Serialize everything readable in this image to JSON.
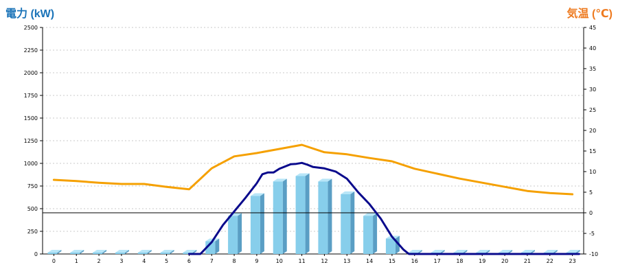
{
  "left_axis_title": "電力 (kW)",
  "right_axis_title": "気温 (℃)",
  "colors": {
    "bar_face": "#87ceeb",
    "bar_side": "#5a9ec4",
    "bar_top": "#b8e6f8",
    "power_line": "#0a0a8c",
    "temp_line": "#f5a000",
    "grid": "#c8c8c8",
    "zero_line": "#000000"
  },
  "chart_data": {
    "type": "bar",
    "categories": [
      "0",
      "1",
      "2",
      "3",
      "4",
      "5",
      "6",
      "7",
      "8",
      "9",
      "10",
      "11",
      "12",
      "13",
      "14",
      "15",
      "16",
      "17",
      "18",
      "19",
      "20",
      "21",
      "22",
      "23"
    ],
    "left_axis": {
      "ylim": [
        0,
        2500
      ],
      "ticks": [
        0,
        250,
        500,
        750,
        1000,
        1250,
        1500,
        1750,
        2000,
        2250,
        2500
      ]
    },
    "right_axis": {
      "ylim": [
        -10,
        45
      ],
      "ticks": [
        -10,
        -5,
        0,
        5,
        10,
        15,
        20,
        25,
        30,
        35,
        40,
        45
      ]
    },
    "grid": true,
    "series": [
      {
        "kind": "bar",
        "axis": "left",
        "values": [
          0,
          0,
          0,
          0,
          0,
          0,
          0,
          140,
          420,
          640,
          800,
          860,
          800,
          660,
          420,
          170,
          0,
          0,
          0,
          0,
          0,
          0,
          0,
          0
        ]
      },
      {
        "kind": "line",
        "axis": "left",
        "x": [
          6,
          6.5,
          7,
          7.5,
          8,
          8.5,
          9,
          9.25,
          9.5,
          9.75,
          10,
          10.5,
          10.75,
          11,
          11.25,
          11.5,
          12,
          12.5,
          13,
          13.5,
          14,
          14.5,
          15,
          15.5,
          15.75,
          16,
          17,
          18,
          19,
          20,
          21,
          22,
          23.3
        ],
        "values": [
          0,
          0,
          130,
          320,
          470,
          620,
          780,
          880,
          900,
          900,
          940,
          990,
          995,
          1005,
          985,
          960,
          945,
          910,
          830,
          680,
          550,
          390,
          190,
          50,
          0,
          0,
          0,
          0,
          0,
          0,
          0,
          0,
          0
        ]
      },
      {
        "kind": "line",
        "axis": "right",
        "x": [
          0,
          1,
          2,
          3,
          4,
          5,
          6,
          7,
          8,
          9,
          10,
          11,
          12,
          13,
          14,
          15,
          16,
          17,
          18,
          19,
          20,
          21,
          22,
          23
        ],
        "values": [
          8,
          7.7,
          7.3,
          7,
          7,
          6.3,
          5.7,
          10.8,
          13.7,
          14.5,
          15.5,
          16.5,
          14.7,
          14.2,
          13.3,
          12.5,
          10.7,
          9.5,
          8.3,
          7.3,
          6.3,
          5.3,
          4.8,
          4.5
        ]
      }
    ]
  }
}
